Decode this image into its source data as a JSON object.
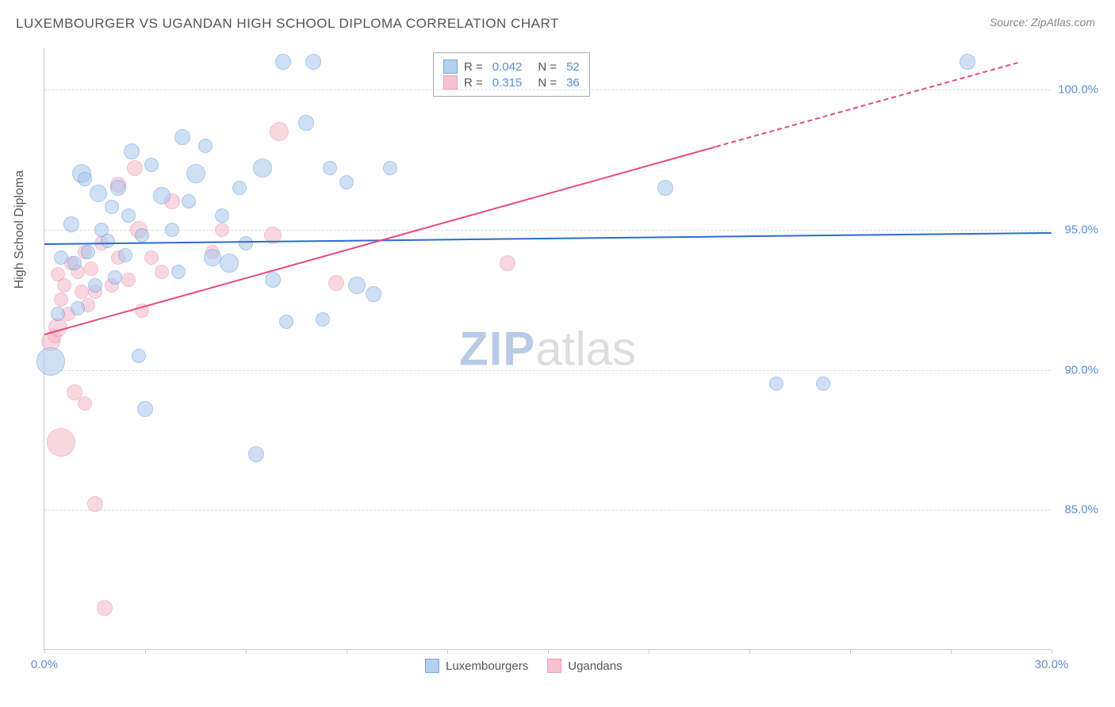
{
  "title": "LUXEMBOURGER VS UGANDAN HIGH SCHOOL DIPLOMA CORRELATION CHART",
  "source": "Source: ZipAtlas.com",
  "y_axis_label": "High School Diploma",
  "watermark": {
    "part1": "ZIP",
    "part2": "atlas"
  },
  "chart": {
    "type": "scatter",
    "xlim": [
      0,
      30
    ],
    "ylim": [
      80,
      101.5
    ],
    "x_ticks": [
      0,
      3,
      6,
      9,
      12,
      15,
      18,
      21,
      24,
      27,
      30
    ],
    "x_tick_labels": {
      "0": "0.0%",
      "30": "30.0%"
    },
    "y_gridlines": [
      85,
      90,
      95,
      100
    ],
    "y_tick_labels": {
      "85": "85.0%",
      "90": "90.0%",
      "95": "95.0%",
      "100": "100.0%"
    },
    "background_color": "#ffffff",
    "grid_color": "#dddddd",
    "axis_label_color": "#555555",
    "tick_label_color": "#5b8fd6",
    "title_fontsize": 17,
    "label_fontsize": 16,
    "tick_fontsize": 15
  },
  "series": {
    "luxembourgers": {
      "label": "Luxembourgers",
      "fill_color": "#a8c8ec",
      "stroke_color": "#6699dd",
      "fill_opacity": 0.55,
      "trend_color": "#2b6cd4",
      "R": "0.042",
      "N": "52",
      "trend": {
        "x1": 0,
        "y1": 94.5,
        "x2": 30,
        "y2": 94.9
      },
      "points": [
        {
          "x": 0.2,
          "y": 90.3,
          "r": 18
        },
        {
          "x": 0.4,
          "y": 92.0,
          "r": 9
        },
        {
          "x": 0.5,
          "y": 94.0,
          "r": 9
        },
        {
          "x": 0.8,
          "y": 95.2,
          "r": 10
        },
        {
          "x": 0.9,
          "y": 93.8,
          "r": 9
        },
        {
          "x": 1.0,
          "y": 92.2,
          "r": 9
        },
        {
          "x": 1.1,
          "y": 97.0,
          "r": 12
        },
        {
          "x": 1.2,
          "y": 96.8,
          "r": 9
        },
        {
          "x": 1.3,
          "y": 94.2,
          "r": 9
        },
        {
          "x": 1.5,
          "y": 93.0,
          "r": 9
        },
        {
          "x": 1.6,
          "y": 96.3,
          "r": 11
        },
        {
          "x": 1.7,
          "y": 95.0,
          "r": 9
        },
        {
          "x": 1.9,
          "y": 94.6,
          "r": 9
        },
        {
          "x": 2.0,
          "y": 95.8,
          "r": 9
        },
        {
          "x": 2.1,
          "y": 93.3,
          "r": 9
        },
        {
          "x": 2.2,
          "y": 96.5,
          "r": 10
        },
        {
          "x": 2.4,
          "y": 94.1,
          "r": 9
        },
        {
          "x": 2.5,
          "y": 95.5,
          "r": 9
        },
        {
          "x": 2.6,
          "y": 97.8,
          "r": 10
        },
        {
          "x": 2.8,
          "y": 90.5,
          "r": 9
        },
        {
          "x": 2.9,
          "y": 94.8,
          "r": 9
        },
        {
          "x": 3.0,
          "y": 88.6,
          "r": 10
        },
        {
          "x": 3.2,
          "y": 97.3,
          "r": 9
        },
        {
          "x": 3.5,
          "y": 96.2,
          "r": 11
        },
        {
          "x": 3.8,
          "y": 95.0,
          "r": 9
        },
        {
          "x": 4.0,
          "y": 93.5,
          "r": 9
        },
        {
          "x": 4.1,
          "y": 98.3,
          "r": 10
        },
        {
          "x": 4.3,
          "y": 96.0,
          "r": 9
        },
        {
          "x": 4.5,
          "y": 97.0,
          "r": 12
        },
        {
          "x": 4.8,
          "y": 98.0,
          "r": 9
        },
        {
          "x": 5.0,
          "y": 94.0,
          "r": 11
        },
        {
          "x": 5.3,
          "y": 95.5,
          "r": 9
        },
        {
          "x": 5.5,
          "y": 93.8,
          "r": 12
        },
        {
          "x": 5.8,
          "y": 96.5,
          "r": 9
        },
        {
          "x": 6.0,
          "y": 94.5,
          "r": 9
        },
        {
          "x": 6.3,
          "y": 87.0,
          "r": 10
        },
        {
          "x": 6.5,
          "y": 97.2,
          "r": 12
        },
        {
          "x": 6.8,
          "y": 93.2,
          "r": 10
        },
        {
          "x": 7.1,
          "y": 101.0,
          "r": 10
        },
        {
          "x": 7.2,
          "y": 91.7,
          "r": 9
        },
        {
          "x": 7.8,
          "y": 98.8,
          "r": 10
        },
        {
          "x": 8.0,
          "y": 101.0,
          "r": 10
        },
        {
          "x": 8.3,
          "y": 91.8,
          "r": 9
        },
        {
          "x": 8.5,
          "y": 97.2,
          "r": 9
        },
        {
          "x": 9.0,
          "y": 96.7,
          "r": 9
        },
        {
          "x": 9.3,
          "y": 93.0,
          "r": 11
        },
        {
          "x": 9.8,
          "y": 92.7,
          "r": 10
        },
        {
          "x": 10.3,
          "y": 97.2,
          "r": 9
        },
        {
          "x": 18.5,
          "y": 96.5,
          "r": 10
        },
        {
          "x": 21.8,
          "y": 89.5,
          "r": 9
        },
        {
          "x": 23.2,
          "y": 89.5,
          "r": 9
        },
        {
          "x": 27.5,
          "y": 101.0,
          "r": 10
        }
      ]
    },
    "ugandans": {
      "label": "Ugandans",
      "fill_color": "#f5b8c9",
      "stroke_color": "#e890aa",
      "fill_opacity": 0.55,
      "trend_color": "#e84a7a",
      "R": "0.315",
      "N": "36",
      "trend_solid": {
        "x1": 0,
        "y1": 91.3,
        "x2": 20,
        "y2": 98.0
      },
      "trend_dashed": {
        "x1": 20,
        "y1": 98.0,
        "x2": 29,
        "y2": 101.0
      },
      "points": [
        {
          "x": 0.2,
          "y": 91.0,
          "r": 12
        },
        {
          "x": 0.3,
          "y": 91.2,
          "r": 9
        },
        {
          "x": 0.4,
          "y": 91.5,
          "r": 12
        },
        {
          "x": 0.4,
          "y": 93.4,
          "r": 9
        },
        {
          "x": 0.5,
          "y": 92.5,
          "r": 9
        },
        {
          "x": 0.5,
          "y": 87.4,
          "r": 18
        },
        {
          "x": 0.6,
          "y": 93.0,
          "r": 9
        },
        {
          "x": 0.7,
          "y": 92.0,
          "r": 9
        },
        {
          "x": 0.8,
          "y": 93.8,
          "r": 9
        },
        {
          "x": 0.9,
          "y": 89.2,
          "r": 10
        },
        {
          "x": 1.0,
          "y": 93.5,
          "r": 9
        },
        {
          "x": 1.1,
          "y": 92.8,
          "r": 9
        },
        {
          "x": 1.2,
          "y": 88.8,
          "r": 9
        },
        {
          "x": 1.2,
          "y": 94.2,
          "r": 9
        },
        {
          "x": 1.3,
          "y": 92.3,
          "r": 9
        },
        {
          "x": 1.4,
          "y": 93.6,
          "r": 9
        },
        {
          "x": 1.5,
          "y": 85.2,
          "r": 10
        },
        {
          "x": 1.5,
          "y": 92.8,
          "r": 9
        },
        {
          "x": 1.7,
          "y": 94.5,
          "r": 9
        },
        {
          "x": 1.8,
          "y": 81.5,
          "r": 10
        },
        {
          "x": 2.0,
          "y": 93.0,
          "r": 9
        },
        {
          "x": 2.2,
          "y": 94.0,
          "r": 9
        },
        {
          "x": 2.2,
          "y": 96.6,
          "r": 10
        },
        {
          "x": 2.5,
          "y": 93.2,
          "r": 9
        },
        {
          "x": 2.7,
          "y": 97.2,
          "r": 10
        },
        {
          "x": 2.8,
          "y": 95.0,
          "r": 11
        },
        {
          "x": 2.9,
          "y": 92.1,
          "r": 9
        },
        {
          "x": 3.2,
          "y": 94.0,
          "r": 9
        },
        {
          "x": 3.5,
          "y": 93.5,
          "r": 9
        },
        {
          "x": 3.8,
          "y": 96.0,
          "r": 10
        },
        {
          "x": 5.0,
          "y": 94.2,
          "r": 9
        },
        {
          "x": 5.3,
          "y": 95.0,
          "r": 9
        },
        {
          "x": 6.8,
          "y": 94.8,
          "r": 11
        },
        {
          "x": 7.0,
          "y": 98.5,
          "r": 12
        },
        {
          "x": 8.7,
          "y": 93.1,
          "r": 10
        },
        {
          "x": 13.8,
          "y": 93.8,
          "r": 10
        }
      ]
    }
  },
  "legend_top": {
    "r_label": "R =",
    "n_label": "N ="
  }
}
